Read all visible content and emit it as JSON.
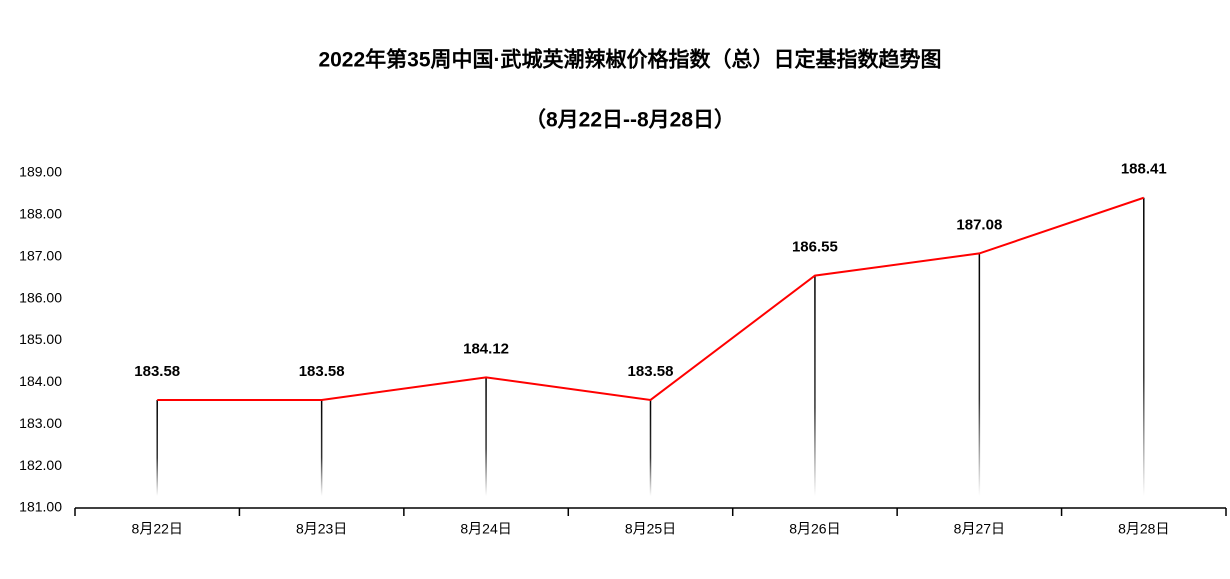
{
  "chart_data": {
    "type": "line",
    "title": "2022年第35周中国·武城英潮辣椒价格指数（总）日定基指数趋势图",
    "subtitle": "（8月22日--8月28日）",
    "categories": [
      "8月22日",
      "8月23日",
      "8月24日",
      "8月25日",
      "8月26日",
      "8月27日",
      "8月28日"
    ],
    "values": [
      183.58,
      183.58,
      184.12,
      183.58,
      186.55,
      187.08,
      188.41
    ],
    "color": "#ff0000",
    "drop_lines": true,
    "ylim": [
      181,
      189
    ],
    "yticks": [
      {
        "value": 181,
        "label": "181.00"
      },
      {
        "value": 182,
        "label": "182.00"
      },
      {
        "value": 183,
        "label": "183.00"
      },
      {
        "value": 184,
        "label": "184.00"
      },
      {
        "value": 185,
        "label": "185.00"
      },
      {
        "value": 186,
        "label": "186.00"
      },
      {
        "value": 187,
        "label": "187.00"
      },
      {
        "value": 188,
        "label": "188.00"
      },
      {
        "value": 189,
        "label": "189.00"
      }
    ]
  }
}
